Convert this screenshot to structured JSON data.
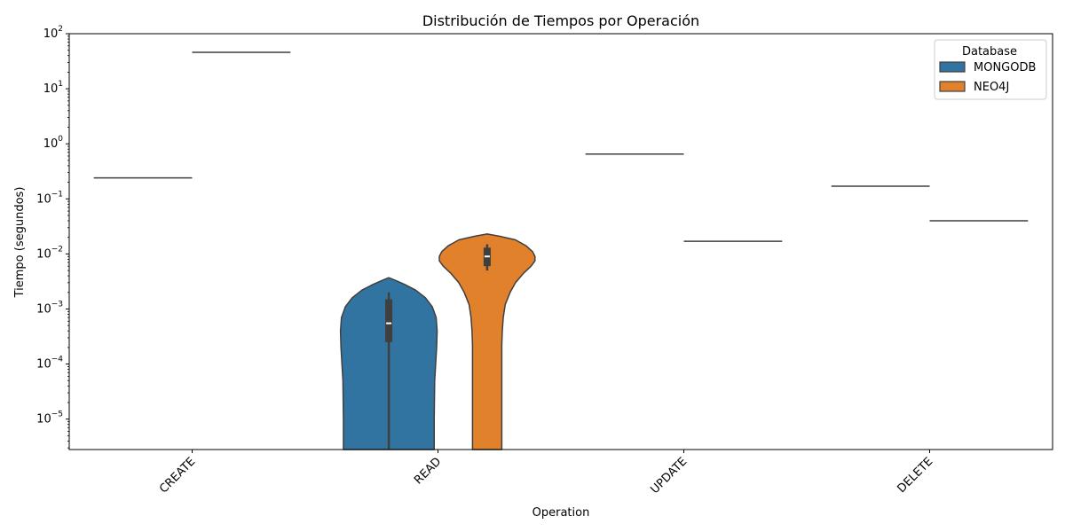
{
  "chart_data": {
    "type": "violin",
    "title": "Distribución de Tiempos por Operación",
    "xlabel": "Operation",
    "ylabel": "Tiempo (segundos)",
    "yscale": "log",
    "ylim": [
      2.8e-06,
      100
    ],
    "yticks": [
      {
        "value": 1e-05,
        "base": "10",
        "exp": "−5"
      },
      {
        "value": 0.0001,
        "base": "10",
        "exp": "−4"
      },
      {
        "value": 0.001,
        "base": "10",
        "exp": "−3"
      },
      {
        "value": 0.01,
        "base": "10",
        "exp": "−2"
      },
      {
        "value": 0.1,
        "base": "10",
        "exp": "−1"
      },
      {
        "value": 1,
        "base": "10",
        "exp": "0"
      },
      {
        "value": 10,
        "base": "10",
        "exp": "1"
      },
      {
        "value": 100,
        "base": "10",
        "exp": "2"
      }
    ],
    "categories": [
      "CREATE",
      "READ",
      "UPDATE",
      "DELETE"
    ],
    "grid": false,
    "legend": {
      "title": "Database",
      "placement": "top-right",
      "entries": [
        "MONGODB",
        "NEO4J"
      ]
    },
    "series": [
      {
        "name": "MONGODB",
        "color": "#3274a1",
        "single_values": [
          0.24,
          null,
          0.65,
          0.17
        ],
        "violins": [
          null,
          {
            "median": 0.00055,
            "q1": 0.00025,
            "q3": 0.0015,
            "whisker_low": 2.8e-06,
            "whisker_high": 0.002,
            "top": 0.0037,
            "profile": [
              [
                0.0037,
                0.0
              ],
              [
                0.0033,
                0.14
              ],
              [
                0.0028,
                0.32
              ],
              [
                0.0022,
                0.55
              ],
              [
                0.0016,
                0.75
              ],
              [
                0.0011,
                0.89
              ],
              [
                0.0007,
                0.97
              ],
              [
                0.0004,
                0.99
              ],
              [
                0.0002,
                0.98
              ],
              [
                0.0001,
                0.96
              ],
              [
                5e-05,
                0.94
              ],
              [
                1e-05,
                0.93
              ],
              [
                2.8e-06,
                0.93
              ]
            ]
          },
          null,
          null
        ]
      },
      {
        "name": "NEO4J",
        "color": "#e1812c",
        "single_values": [
          46,
          null,
          0.017,
          0.04
        ],
        "violins": [
          null,
          {
            "median": 0.009,
            "q1": 0.006,
            "q3": 0.013,
            "whisker_low": 0.005,
            "whisker_high": 0.015,
            "top": 0.023,
            "profile": [
              [
                0.023,
                0.0
              ],
              [
                0.021,
                0.25
              ],
              [
                0.018,
                0.58
              ],
              [
                0.014,
                0.8
              ],
              [
                0.011,
                0.93
              ],
              [
                0.009,
                0.98
              ],
              [
                0.0075,
                0.98
              ],
              [
                0.006,
                0.9
              ],
              [
                0.0045,
                0.75
              ],
              [
                0.003,
                0.58
              ],
              [
                0.002,
                0.47
              ],
              [
                0.0012,
                0.37
              ],
              [
                0.0007,
                0.33
              ],
              [
                0.0004,
                0.31
              ],
              [
                0.00022,
                0.3
              ],
              [
                2.8e-06,
                0.3
              ]
            ]
          },
          null,
          null
        ]
      }
    ]
  }
}
